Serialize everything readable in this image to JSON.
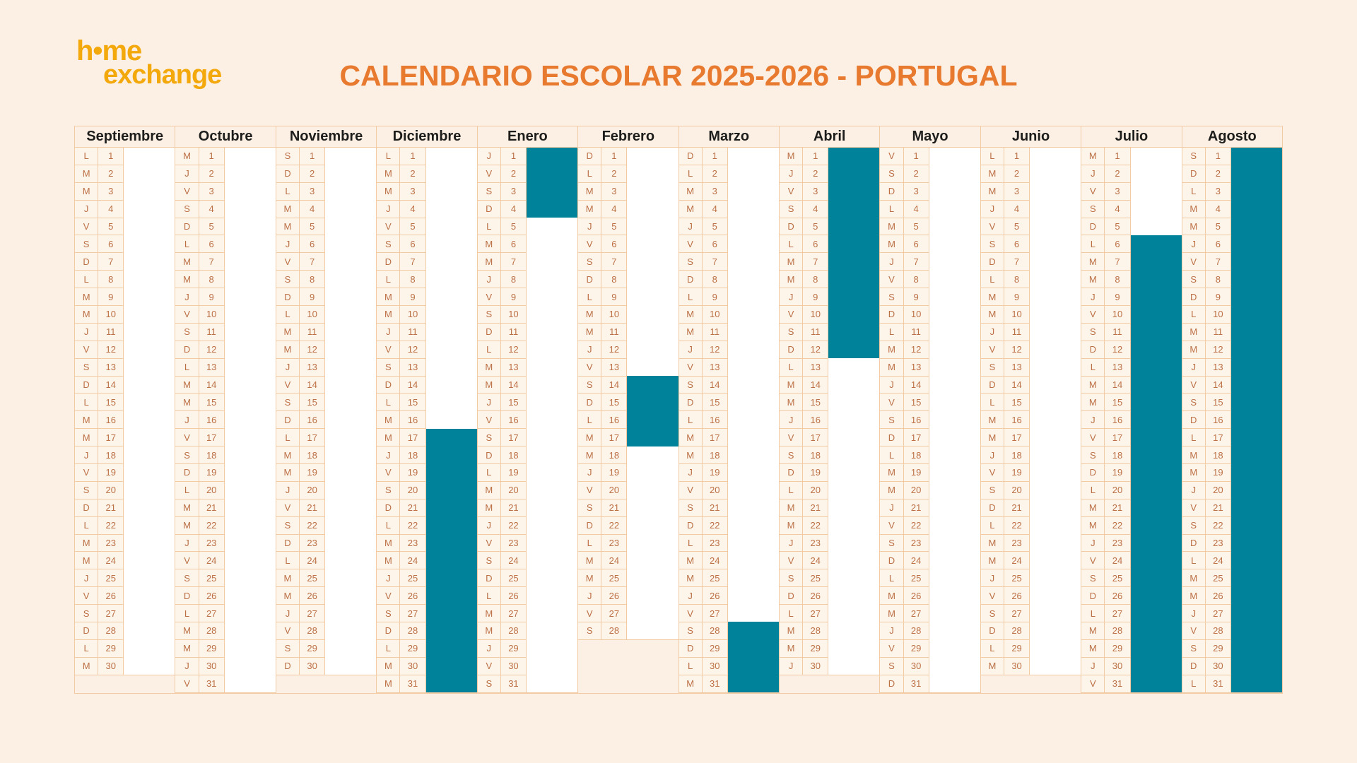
{
  "page": {
    "background": "#fcefe3"
  },
  "logo": {
    "line1": "h•me",
    "line2": "exchange",
    "color": "#f3a80c"
  },
  "title": {
    "text": "CALENDARIO ESCOLAR 2025-2026 - PORTUGAL",
    "color": "#e87a2f"
  },
  "calendar": {
    "school_year": "2025-2026",
    "country": "Portugal",
    "weekday_letters_mon_to_sun": [
      "L",
      "M",
      "M",
      "J",
      "V",
      "S",
      "D"
    ],
    "colors": {
      "holiday_highlight": "#00829a",
      "day_cell_bg": "#fdf4ea",
      "day_cell_text": "#bc7045",
      "grid_border": "#f2cba4",
      "notes_bg": "#ffffff",
      "month_header_text": "#1d1d1b"
    },
    "months": [
      {
        "name": "Septiembre",
        "days": 30,
        "letters": "LMMJVSDLMMJVSDLMMJVSDLMMJVSDLM",
        "holiday": null
      },
      {
        "name": "Octubre",
        "days": 31,
        "letters": "MJVSDLMMJVSDLMMJVSDLMMJVSDLMMJV",
        "holiday": null
      },
      {
        "name": "Noviembre",
        "days": 30,
        "letters": "SDLMMJVSDLMMJVSDLMMJVSDLMMJVSD",
        "holiday": null
      },
      {
        "name": "Diciembre",
        "days": 31,
        "letters": "LMMJVSDLMMJVSDLMMJVSDLMMJVSDLMM",
        "holiday": {
          "from": 17,
          "to": 31
        }
      },
      {
        "name": "Enero",
        "days": 31,
        "letters": "JVSDLMMJVSDLMMJVSDLMMJVSDLMMJVS",
        "holiday": {
          "from": 1,
          "to": 4
        }
      },
      {
        "name": "Febrero",
        "days": 28,
        "letters": "DLMMJVSDLMMJVSDLMMJVSDLMMJVS",
        "holiday": {
          "from": 14,
          "to": 17
        }
      },
      {
        "name": "Marzo",
        "days": 31,
        "letters": "DLMMJVSDLMMJVSDLMMJVSDLMMJVSDLM",
        "holiday": {
          "from": 28,
          "to": 31
        }
      },
      {
        "name": "Abril",
        "days": 30,
        "letters": "MJVSDLMMJVSDLMMJVSDLMMJVSDLMMJ",
        "holiday": {
          "from": 1,
          "to": 12
        }
      },
      {
        "name": "Mayo",
        "days": 31,
        "letters": "VSDLMMJVSDLMMJVSDLMMJVSDLMMJVSD",
        "holiday": null
      },
      {
        "name": "Junio",
        "days": 30,
        "letters": "LMMJVSDLMMJVSDLMMJVSDLMMJVSDLM",
        "holiday": null
      },
      {
        "name": "Julio",
        "days": 31,
        "letters": "MJVSDLMMJVSDLMMJVSDLMMJVSDLMMJV",
        "holiday": {
          "from": 6,
          "to": 31
        }
      },
      {
        "name": "Agosto",
        "days": 31,
        "letters": "SDLMMJVSDLMMJVSDLMMJVSDLMMJVSDL",
        "holiday": {
          "from": 1,
          "to": 31
        }
      }
    ]
  }
}
